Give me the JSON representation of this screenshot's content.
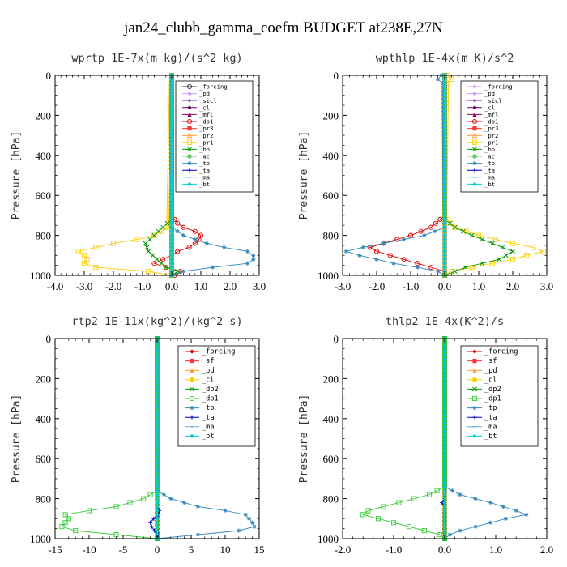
{
  "figure_title": "jan24_clubb_gamma_coefm  BUDGET at238E,27N",
  "chart_data": [
    {
      "type": "line",
      "title": "wprtp  1E-7x(m kg)/(s^2 kg)",
      "ylabel": "Pressure [hPa]",
      "xlim": [
        -4.0,
        3.0
      ],
      "ylim": [
        1000,
        0
      ],
      "xticks": [
        -4.0,
        -3.0,
        -2.0,
        -1.0,
        0.0,
        1.0,
        2.0,
        3.0
      ],
      "xtick_labels": [
        "-4.0",
        "-3.0",
        "-2.0",
        "-1.0",
        "0.0",
        "1.0",
        "2.0",
        "3.0"
      ],
      "yticks": [
        0,
        200,
        400,
        600,
        800,
        1000
      ],
      "ytick_labels": [
        "0",
        "200",
        "400",
        "600",
        "800",
        "1000"
      ],
      "legend_position": "top-right",
      "series": [
        {
          "name": "_forcing",
          "color": "#333333",
          "marker": "circle-open",
          "y": [
            0,
            500,
            1000
          ],
          "x": [
            0,
            0,
            0
          ]
        },
        {
          "name": "_pd",
          "color": "#cc99ff",
          "marker": "diamond",
          "y": [
            0,
            1000
          ],
          "x": [
            0,
            0
          ]
        },
        {
          "name": "_sicl",
          "color": "#9966cc",
          "marker": "diamond",
          "y": [
            0,
            1000
          ],
          "x": [
            0,
            0
          ]
        },
        {
          "name": "_cl",
          "color": "#660066",
          "marker": "diamond",
          "y": [
            0,
            1000
          ],
          "x": [
            0,
            0
          ]
        },
        {
          "name": "_mfl",
          "color": "#990066",
          "marker": "triangle",
          "y": [
            0,
            1000
          ],
          "x": [
            0,
            0
          ]
        },
        {
          "name": "_dp1",
          "color": "#dd0000",
          "marker": "circle-open",
          "y": [
            0,
            700,
            740,
            760,
            780,
            800,
            830,
            860,
            880,
            900,
            920,
            940,
            960,
            980,
            1000
          ],
          "x": [
            0,
            0,
            0.2,
            0.4,
            0.8,
            1.0,
            0.9,
            0.6,
            0.2,
            0.0,
            -0.3,
            -0.6,
            -0.2,
            0.3,
            0.1
          ]
        },
        {
          "name": "_pr3",
          "color": "#ff3333",
          "marker": "square",
          "y": [
            0,
            1000
          ],
          "x": [
            0,
            0
          ]
        },
        {
          "name": "_pr2",
          "color": "#ff9933",
          "marker": "triangle-open",
          "y": [
            0,
            1000
          ],
          "x": [
            0,
            0
          ]
        },
        {
          "name": "_pr1",
          "color": "#ffcc00",
          "marker": "square-open",
          "y": [
            0,
            760,
            800,
            820,
            840,
            860,
            880,
            900,
            920,
            940,
            960,
            980,
            1000
          ],
          "x": [
            0,
            -0.1,
            -0.6,
            -1.2,
            -2.0,
            -2.6,
            -3.2,
            -3.0,
            -2.9,
            -3.0,
            -2.6,
            -0.8,
            0.0
          ]
        },
        {
          "name": "_bp",
          "color": "#009900",
          "marker": "x",
          "y": [
            0,
            720,
            760,
            800,
            840,
            880,
            920,
            960,
            980,
            1000
          ],
          "x": [
            0,
            0,
            -0.3,
            -0.6,
            -0.9,
            -0.8,
            -0.5,
            -0.2,
            0.2,
            0.0
          ]
        },
        {
          "name": "_ac",
          "color": "#66cc66",
          "marker": "circle",
          "y": [
            0,
            1000
          ],
          "x": [
            0,
            0
          ]
        },
        {
          "name": "_tp",
          "color": "#3388bb",
          "marker": "star",
          "y": [
            0,
            760,
            800,
            840,
            860,
            880,
            900,
            920,
            940,
            960,
            980,
            1000
          ],
          "x": [
            0,
            0,
            0.4,
            1.2,
            1.8,
            2.6,
            2.8,
            2.8,
            2.6,
            1.4,
            0.4,
            0.0
          ]
        },
        {
          "name": "_ta",
          "color": "#0000cc",
          "marker": "plus",
          "y": [
            0,
            1000
          ],
          "x": [
            0,
            0
          ]
        },
        {
          "name": "_ma",
          "color": "#66aadd",
          "marker": "dash",
          "y": [
            0,
            1000
          ],
          "x": [
            0,
            0
          ]
        },
        {
          "name": "_bt",
          "color": "#00cccc",
          "marker": "diamond",
          "y": [
            0,
            1000
          ],
          "x": [
            0,
            0
          ]
        }
      ]
    },
    {
      "type": "line",
      "title": "wpthlp  1E-4x(m K)/s^2",
      "ylabel": "Pressure [hPa]",
      "xlim": [
        -3.0,
        3.0
      ],
      "ylim": [
        1000,
        0
      ],
      "xticks": [
        -3.0,
        -2.0,
        -1.0,
        0.0,
        1.0,
        2.0,
        3.0
      ],
      "xtick_labels": [
        "-3.0",
        "-2.0",
        "-1.0",
        "0.0",
        "1.0",
        "2.0",
        "3.0"
      ],
      "yticks": [
        0,
        200,
        400,
        600,
        800,
        1000
      ],
      "ytick_labels": [
        "0",
        "200",
        "400",
        "600",
        "800",
        "1000"
      ],
      "legend_position": "top-right",
      "series": [
        {
          "name": "_forcing",
          "color": "#cc99ff",
          "marker": "diamond",
          "y": [
            0,
            1000
          ],
          "x": [
            0,
            0
          ]
        },
        {
          "name": "_pd",
          "color": "#cc99ff",
          "marker": "diamond",
          "y": [
            0,
            500,
            1000
          ],
          "x": [
            0,
            0,
            0
          ]
        },
        {
          "name": "_sicl",
          "color": "#9966cc",
          "marker": "diamond",
          "y": [
            0,
            1000
          ],
          "x": [
            0,
            0
          ]
        },
        {
          "name": "_cl",
          "color": "#660066",
          "marker": "diamond",
          "y": [
            0,
            1000
          ],
          "x": [
            0,
            0
          ]
        },
        {
          "name": "_mfl",
          "color": "#990066",
          "marker": "triangle",
          "y": [
            0,
            1000
          ],
          "x": [
            0,
            0
          ]
        },
        {
          "name": "_dp1",
          "color": "#dd0000",
          "marker": "circle-open",
          "y": [
            0,
            700,
            760,
            800,
            840,
            860,
            880,
            900,
            920,
            940,
            960,
            980,
            1000
          ],
          "x": [
            0,
            0,
            -0.4,
            -1.0,
            -1.8,
            -2.2,
            -2.0,
            -1.6,
            -1.2,
            -0.8,
            -0.4,
            0.0,
            0.0
          ]
        },
        {
          "name": "_pr3",
          "color": "#ff3333",
          "marker": "square",
          "y": [
            0,
            1000
          ],
          "x": [
            0,
            0
          ]
        },
        {
          "name": "_pr2",
          "color": "#ff9933",
          "marker": "triangle-open",
          "y": [
            0,
            1000
          ],
          "x": [
            0,
            0
          ]
        },
        {
          "name": "_pr1",
          "color": "#ffcc00",
          "marker": "square-open",
          "y": [
            0,
            20,
            40,
            700,
            760,
            800,
            840,
            860,
            880,
            900,
            920,
            940,
            960,
            980,
            1000
          ],
          "x": [
            0.1,
            0.2,
            0.05,
            0,
            0.3,
            1.0,
            2.0,
            2.6,
            2.9,
            2.4,
            2.0,
            1.4,
            0.8,
            0.2,
            0.0
          ]
        },
        {
          "name": "_bp",
          "color": "#009900",
          "marker": "x",
          "y": [
            0,
            720,
            760,
            800,
            840,
            880,
            920,
            960,
            1000
          ],
          "x": [
            0,
            0,
            0.3,
            0.8,
            1.4,
            2.0,
            1.6,
            0.6,
            0.0
          ]
        },
        {
          "name": "_ac",
          "color": "#66cc66",
          "marker": "circle",
          "y": [
            0,
            1000
          ],
          "x": [
            0,
            0
          ]
        },
        {
          "name": "_tp",
          "color": "#3388bb",
          "marker": "star",
          "y": [
            0,
            20,
            40,
            760,
            800,
            840,
            860,
            880,
            900,
            920,
            940,
            960,
            980,
            1000
          ],
          "x": [
            -0.1,
            -0.2,
            -0.05,
            0,
            -0.6,
            -1.8,
            -2.4,
            -2.9,
            -2.5,
            -2.0,
            -1.5,
            -0.8,
            -0.2,
            0.0
          ]
        },
        {
          "name": "_ta",
          "color": "#0000cc",
          "marker": "plus",
          "y": [
            0,
            1000
          ],
          "x": [
            0,
            0
          ]
        },
        {
          "name": "_ma",
          "color": "#66aadd",
          "marker": "dash",
          "y": [
            0,
            1000
          ],
          "x": [
            0,
            0
          ]
        },
        {
          "name": "_bt",
          "color": "#00cccc",
          "marker": "diamond",
          "y": [
            0,
            1000
          ],
          "x": [
            0,
            0
          ]
        }
      ]
    },
    {
      "type": "line",
      "title": "rtp2  1E-11x(kg^2)/(kg^2 s)",
      "ylabel": "Pressure [hPa]",
      "xlim": [
        -15,
        15
      ],
      "ylim": [
        1000,
        0
      ],
      "xticks": [
        -15,
        -10,
        -5,
        0,
        5,
        10,
        15
      ],
      "xtick_labels": [
        "-15",
        "-10",
        "-5",
        "0",
        "5",
        "10",
        "15"
      ],
      "yticks": [
        0,
        200,
        400,
        600,
        800,
        1000
      ],
      "ytick_labels": [
        "0",
        "200",
        "400",
        "600",
        "800",
        "1000"
      ],
      "legend_position": "top-right",
      "series": [
        {
          "name": "_forcing",
          "color": "#dd0000",
          "marker": "diamond",
          "y": [
            0,
            500,
            1000
          ],
          "x": [
            0,
            0,
            0
          ]
        },
        {
          "name": "_sf",
          "color": "#ff3333",
          "marker": "square",
          "y": [
            0,
            1000
          ],
          "x": [
            0,
            0
          ]
        },
        {
          "name": "_pd",
          "color": "#ff9933",
          "marker": "triangle",
          "y": [
            0,
            1000
          ],
          "x": [
            0,
            0
          ]
        },
        {
          "name": "_cl",
          "color": "#ffcc00",
          "marker": "circle",
          "y": [
            0,
            1000
          ],
          "x": [
            0,
            0
          ]
        },
        {
          "name": "_dp2",
          "color": "#009900",
          "marker": "x",
          "y": [
            0,
            1000
          ],
          "x": [
            0,
            0
          ]
        },
        {
          "name": "_dp1",
          "color": "#33cc33",
          "marker": "square-open",
          "y": [
            0,
            760,
            800,
            840,
            860,
            880,
            900,
            920,
            940,
            960,
            980,
            1000
          ],
          "x": [
            0,
            0,
            -2.0,
            -6.0,
            -10.0,
            -13.5,
            -13.0,
            -13.5,
            -14.0,
            -12.0,
            -6.0,
            0.0
          ]
        },
        {
          "name": "_tp",
          "color": "#3388bb",
          "marker": "star",
          "y": [
            0,
            760,
            800,
            840,
            860,
            880,
            900,
            920,
            940,
            960,
            980,
            1000
          ],
          "x": [
            0,
            0,
            2.0,
            6.0,
            10.0,
            13.0,
            13.5,
            14.0,
            14.3,
            12.0,
            6.0,
            0.0
          ]
        },
        {
          "name": "_ta",
          "color": "#0000cc",
          "marker": "plus",
          "y": [
            0,
            840,
            860,
            880,
            900,
            920,
            940,
            960,
            980,
            1000
          ],
          "x": [
            0,
            0,
            0.3,
            0.2,
            -0.5,
            -1.0,
            -0.8,
            -0.4,
            0.2,
            0.0
          ]
        },
        {
          "name": "_ma",
          "color": "#66aadd",
          "marker": "dash",
          "y": [
            0,
            1000
          ],
          "x": [
            0,
            0
          ]
        },
        {
          "name": "_bt",
          "color": "#00cccc",
          "marker": "diamond",
          "y": [
            0,
            1000
          ],
          "x": [
            0,
            0
          ]
        }
      ]
    },
    {
      "type": "line",
      "title": "thlp2  1E-4x(K^2)/s",
      "ylabel": "Pressure [hPa]",
      "xlim": [
        -2.0,
        2.0
      ],
      "ylim": [
        1000,
        0
      ],
      "xticks": [
        -2.0,
        -1.0,
        0.0,
        1.0,
        2.0
      ],
      "xtick_labels": [
        "-2.0",
        "-1.0",
        "0.0",
        "1.0",
        "2.0"
      ],
      "yticks": [
        0,
        200,
        400,
        600,
        800,
        1000
      ],
      "ytick_labels": [
        "0",
        "200",
        "400",
        "600",
        "800",
        "1000"
      ],
      "legend_position": "top-right",
      "series": [
        {
          "name": "_forcing",
          "color": "#dd0000",
          "marker": "diamond",
          "y": [
            0,
            500,
            1000
          ],
          "x": [
            0,
            0,
            0
          ]
        },
        {
          "name": "_sf",
          "color": "#ff3333",
          "marker": "square",
          "y": [
            0,
            1000
          ],
          "x": [
            0,
            0
          ]
        },
        {
          "name": "_pd",
          "color": "#ff9933",
          "marker": "triangle",
          "y": [
            0,
            1000
          ],
          "x": [
            0,
            0
          ]
        },
        {
          "name": "_cl",
          "color": "#ffcc00",
          "marker": "circle",
          "y": [
            0,
            1000
          ],
          "x": [
            0,
            0
          ]
        },
        {
          "name": "_dp2",
          "color": "#009900",
          "marker": "x",
          "y": [
            0,
            1000
          ],
          "x": [
            0,
            0
          ]
        },
        {
          "name": "_dp1",
          "color": "#33cc33",
          "marker": "square-open",
          "y": [
            0,
            740,
            780,
            820,
            860,
            880,
            900,
            920,
            940,
            960,
            980,
            1000
          ],
          "x": [
            0,
            0,
            -0.3,
            -0.9,
            -1.5,
            -1.6,
            -1.3,
            -1.0,
            -0.7,
            -0.4,
            -0.1,
            0.0
          ]
        },
        {
          "name": "_tp",
          "color": "#3388bb",
          "marker": "star",
          "y": [
            0,
            740,
            780,
            820,
            860,
            880,
            900,
            920,
            940,
            960,
            980,
            1000
          ],
          "x": [
            0,
            0,
            0.3,
            0.9,
            1.4,
            1.6,
            1.2,
            0.9,
            0.6,
            0.3,
            0.1,
            0.0
          ]
        },
        {
          "name": "_ta",
          "color": "#0000cc",
          "marker": "plus",
          "y": [
            0,
            800,
            820,
            840,
            1000
          ],
          "x": [
            0,
            0,
            -0.05,
            0,
            0
          ]
        },
        {
          "name": "_ma",
          "color": "#66aadd",
          "marker": "dash",
          "y": [
            0,
            1000
          ],
          "x": [
            0,
            0
          ]
        },
        {
          "name": "_bt",
          "color": "#00cccc",
          "marker": "diamond",
          "y": [
            0,
            1000
          ],
          "x": [
            0,
            0
          ]
        }
      ]
    }
  ]
}
